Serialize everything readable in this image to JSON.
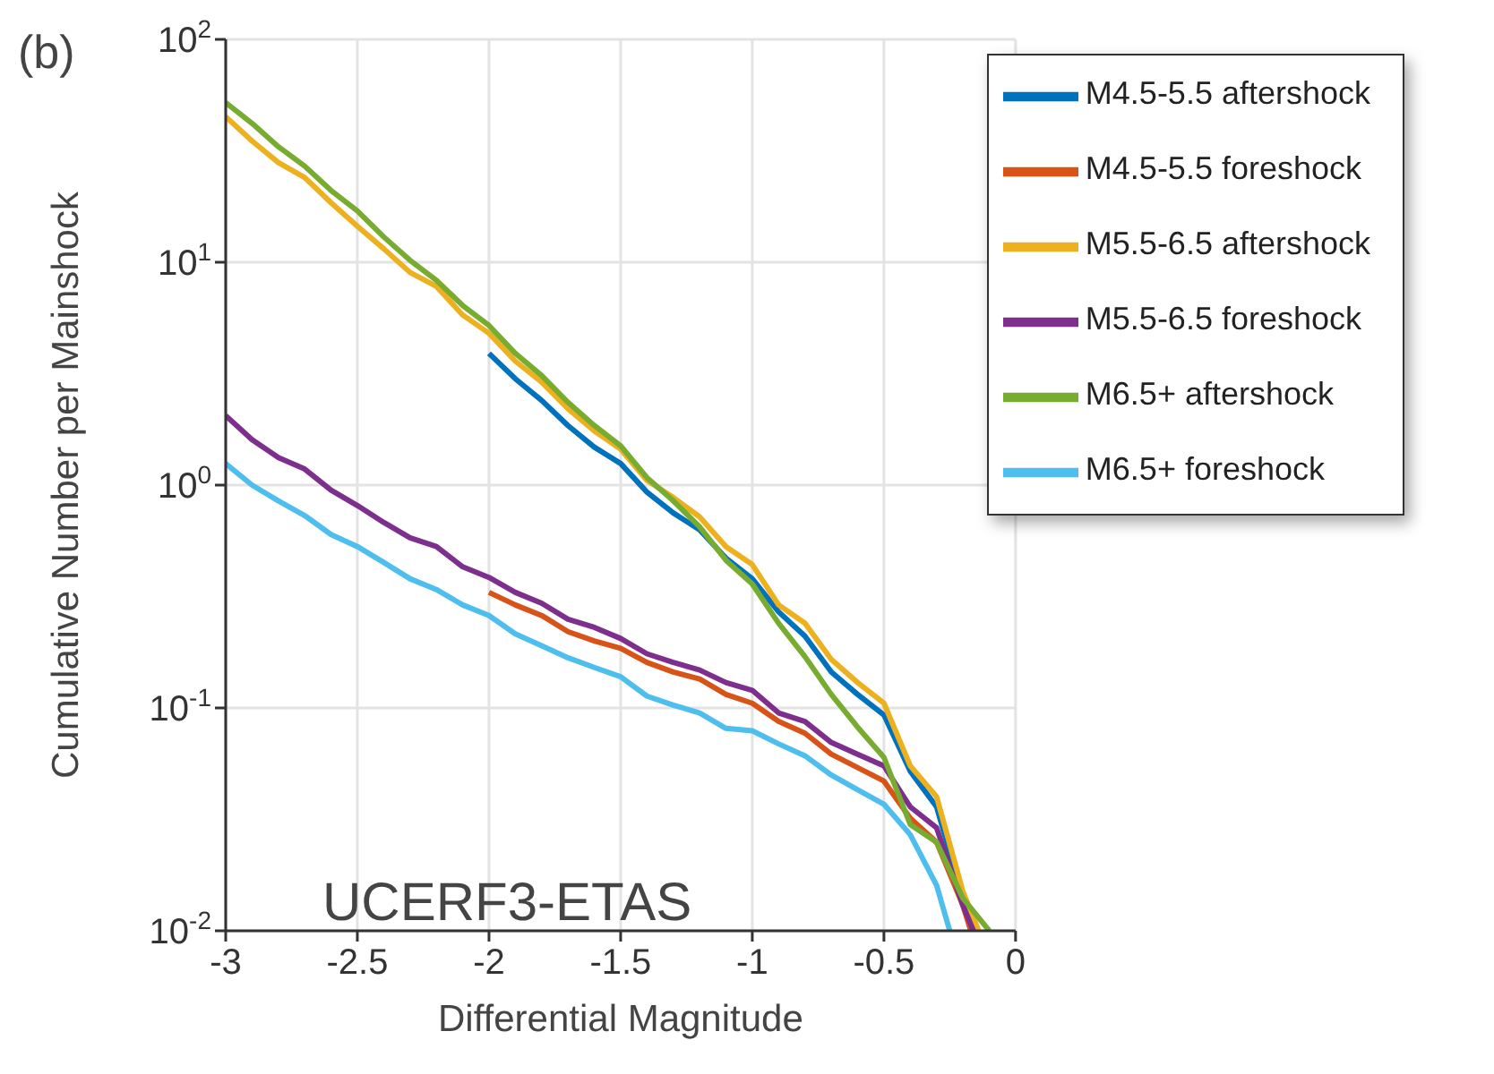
{
  "chart_data": {
    "type": "line",
    "xlabel": "Differential Magnitude",
    "ylabel": "Cumulative Number per Mainshock",
    "annotations": [
      "(b)",
      "UCERF3-ETAS"
    ],
    "log": "y",
    "grid": true,
    "legend": "top right",
    "line_style": "solid",
    "marker": "none",
    "xlim": [
      -3,
      0
    ],
    "xticks": [
      -3,
      -2.5,
      -2,
      -1.5,
      -1,
      -0.5,
      0
    ],
    "ylim": [
      0.01,
      100
    ],
    "yticks": [
      {
        "value": 0.01,
        "label": "10$^{-2}$"
      },
      {
        "value": 0.1,
        "label": "10$^{-1}$"
      },
      {
        "value": 1,
        "label": "10$^{0}$"
      },
      {
        "value": 10,
        "label": "10$^{1}$"
      },
      {
        "value": 100,
        "label": "10$^{2}$"
      }
    ],
    "series": [
      {
        "name": "M4.5-5.5 aftershock",
        "color": "#0072bd",
        "x": [
          -2,
          -1.9,
          -1.8,
          -1.7,
          -1.6,
          -1.5,
          -1.4,
          -1.3,
          -1.2,
          -1.1,
          -1,
          -0.9,
          -0.8,
          -0.7,
          -0.6,
          -0.5,
          -0.4,
          -0.3,
          -0.2,
          -0.15
        ],
        "values": [
          3.9,
          3.0,
          2.4,
          1.85,
          1.48,
          1.25,
          0.93,
          0.75,
          0.63,
          0.47,
          0.38,
          0.27,
          0.21,
          0.145,
          0.115,
          0.093,
          0.052,
          0.036,
          0.014,
          0.01
        ]
      },
      {
        "name": "M4.5-5.5 foreshock",
        "color": "#d95319",
        "x": [
          -2,
          -1.9,
          -1.8,
          -1.7,
          -1.6,
          -1.5,
          -1.4,
          -1.3,
          -1.2,
          -1.1,
          -1,
          -0.9,
          -0.8,
          -0.7,
          -0.6,
          -0.5,
          -0.4,
          -0.3,
          -0.2,
          -0.17
        ],
        "values": [
          0.33,
          0.29,
          0.26,
          0.22,
          0.2,
          0.185,
          0.16,
          0.145,
          0.135,
          0.115,
          0.105,
          0.087,
          0.077,
          0.062,
          0.054,
          0.047,
          0.032,
          0.025,
          0.013,
          0.01
        ]
      },
      {
        "name": "M5.5-6.5 aftershock",
        "color": "#edb120",
        "x": [
          -3,
          -2.9,
          -2.8,
          -2.7,
          -2.6,
          -2.5,
          -2.4,
          -2.3,
          -2.2,
          -2.1,
          -2,
          -1.9,
          -1.8,
          -1.7,
          -1.6,
          -1.5,
          -1.4,
          -1.3,
          -1.2,
          -1.1,
          -1,
          -0.9,
          -0.8,
          -0.7,
          -0.6,
          -0.5,
          -0.4,
          -0.3,
          -0.2,
          -0.14
        ],
        "values": [
          45,
          35,
          28,
          24,
          18.5,
          14.5,
          11.5,
          9,
          7.8,
          5.8,
          4.8,
          3.6,
          2.9,
          2.2,
          1.75,
          1.45,
          1.05,
          0.88,
          0.72,
          0.53,
          0.44,
          0.29,
          0.24,
          0.165,
          0.13,
          0.105,
          0.055,
          0.04,
          0.015,
          0.01
        ]
      },
      {
        "name": "M5.5-6.5 foreshock",
        "color": "#7e2f8e",
        "x": [
          -3,
          -2.9,
          -2.8,
          -2.7,
          -2.6,
          -2.5,
          -2.4,
          -2.3,
          -2.2,
          -2.1,
          -2,
          -1.9,
          -1.8,
          -1.7,
          -1.6,
          -1.5,
          -1.4,
          -1.3,
          -1.2,
          -1.1,
          -1,
          -0.9,
          -0.8,
          -0.7,
          -0.6,
          -0.5,
          -0.4,
          -0.3,
          -0.2,
          -0.16
        ],
        "values": [
          2.05,
          1.6,
          1.33,
          1.18,
          0.95,
          0.81,
          0.68,
          0.58,
          0.53,
          0.43,
          0.385,
          0.33,
          0.295,
          0.25,
          0.23,
          0.205,
          0.175,
          0.16,
          0.148,
          0.13,
          0.12,
          0.095,
          0.087,
          0.07,
          0.062,
          0.055,
          0.036,
          0.029,
          0.013,
          0.01
        ]
      },
      {
        "name": "M6.5+ aftershock",
        "color": "#77ac30",
        "x": [
          -3,
          -2.9,
          -2.8,
          -2.7,
          -2.6,
          -2.5,
          -2.4,
          -2.3,
          -2.2,
          -2.1,
          -2,
          -1.9,
          -1.8,
          -1.7,
          -1.6,
          -1.5,
          -1.4,
          -1.3,
          -1.2,
          -1.1,
          -1,
          -0.9,
          -0.8,
          -0.7,
          -0.6,
          -0.5,
          -0.4,
          -0.3,
          -0.2,
          -0.1
        ],
        "values": [
          52,
          42,
          33,
          27,
          21,
          17,
          13,
          10.2,
          8.3,
          6.4,
          5.2,
          3.9,
          3.1,
          2.35,
          1.85,
          1.5,
          1.08,
          0.85,
          0.65,
          0.46,
          0.36,
          0.24,
          0.17,
          0.115,
          0.082,
          0.06,
          0.03,
          0.025,
          0.014,
          0.01
        ]
      },
      {
        "name": "M6.5+ foreshock",
        "color": "#4dbeee",
        "x": [
          -3,
          -2.9,
          -2.8,
          -2.7,
          -2.6,
          -2.5,
          -2.4,
          -2.3,
          -2.2,
          -2.1,
          -2,
          -1.9,
          -1.8,
          -1.7,
          -1.6,
          -1.5,
          -1.4,
          -1.3,
          -1.2,
          -1.1,
          -1,
          -0.9,
          -0.8,
          -0.7,
          -0.6,
          -0.5,
          -0.4,
          -0.3,
          -0.25
        ],
        "values": [
          1.25,
          1.0,
          0.85,
          0.73,
          0.6,
          0.53,
          0.45,
          0.38,
          0.34,
          0.29,
          0.26,
          0.215,
          0.19,
          0.168,
          0.152,
          0.138,
          0.113,
          0.103,
          0.095,
          0.081,
          0.079,
          0.069,
          0.061,
          0.05,
          0.043,
          0.037,
          0.027,
          0.016,
          0.01
        ]
      }
    ]
  }
}
